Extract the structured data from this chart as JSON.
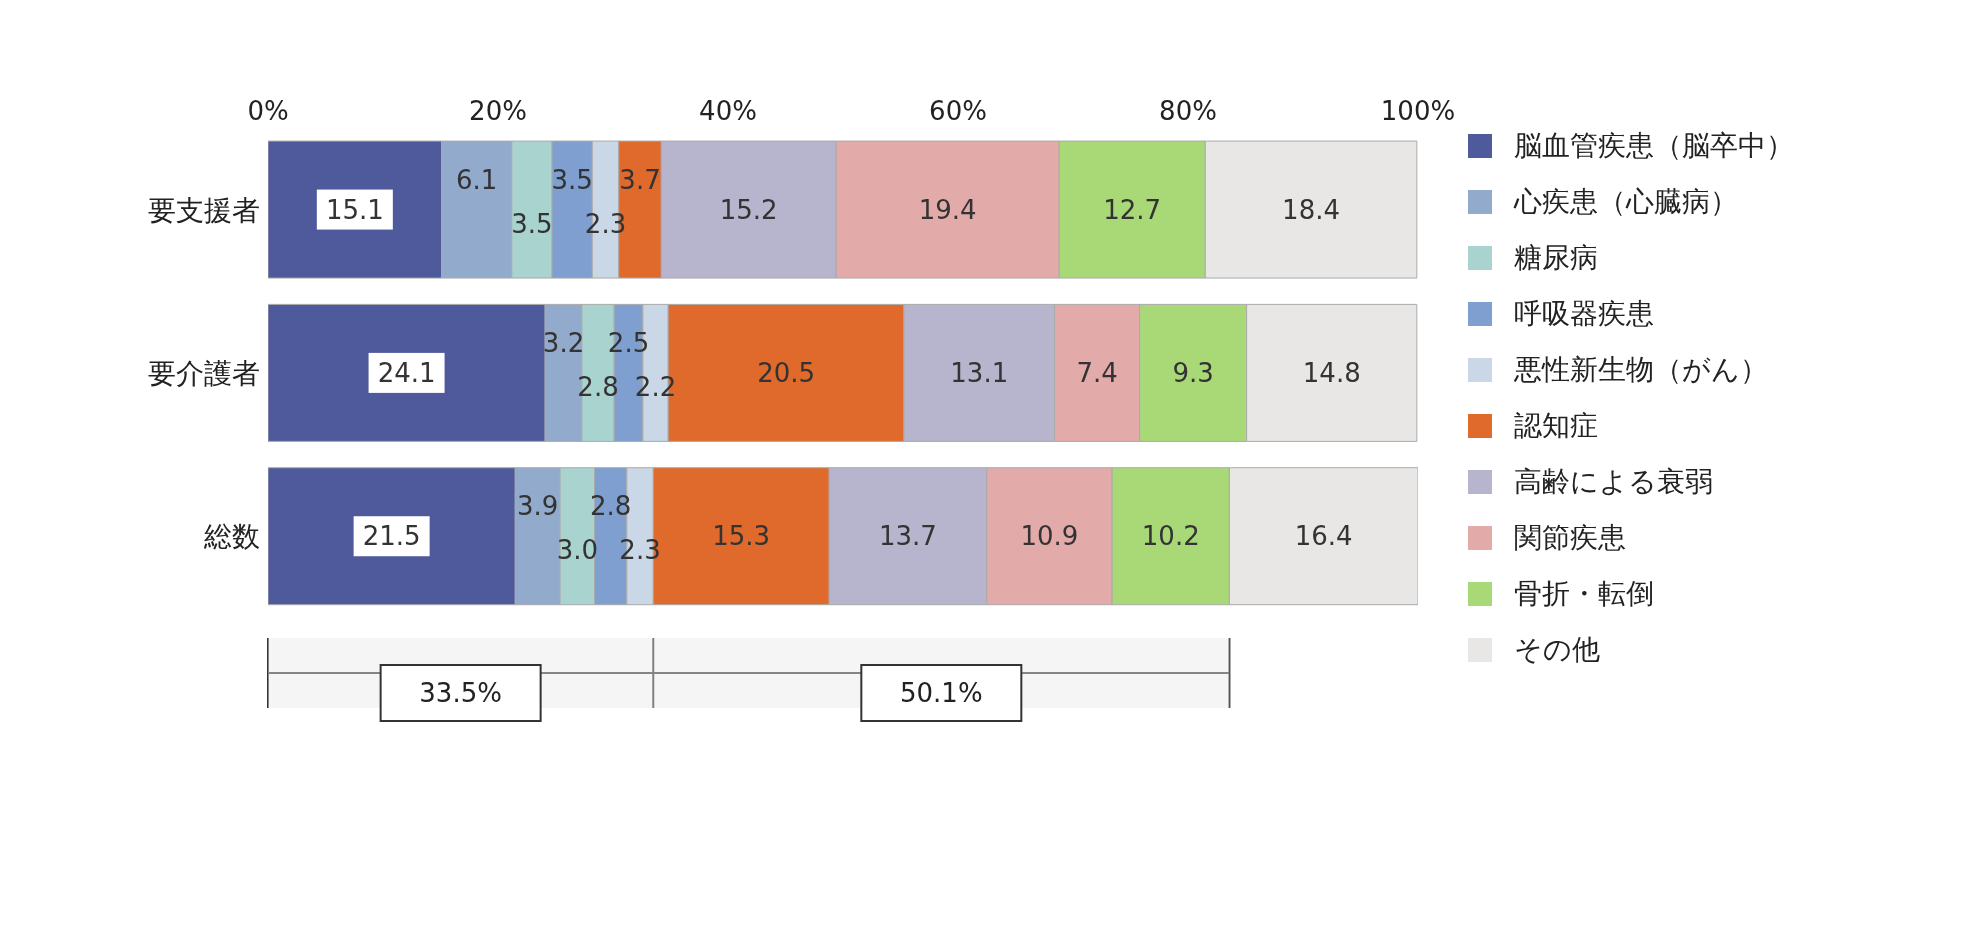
{
  "chart_data": {
    "type": "bar",
    "orientation": "horizontal",
    "stacked": true,
    "categories": [
      "要支援者",
      "要介護者",
      "総数"
    ],
    "series": [
      {
        "name": "脳血管疾患（脳卒中）",
        "color": "#4f5a9c",
        "values": [
          15.1,
          24.1,
          21.5
        ],
        "value_labels": [
          "15.1",
          "24.1",
          "21.5"
        ]
      },
      {
        "name": "心疾患（心臓病）",
        "color": "#92aacb",
        "values": [
          6.1,
          3.2,
          3.9
        ],
        "value_labels": [
          "6.1",
          "3.2",
          "3.9"
        ]
      },
      {
        "name": "糖尿病",
        "color": "#a9d3cf",
        "values": [
          3.5,
          2.8,
          3.0
        ],
        "value_labels": [
          "3.5",
          "2.8",
          "3.0"
        ]
      },
      {
        "name": "呼吸器疾患",
        "color": "#7e9fd0",
        "values": [
          3.5,
          2.5,
          2.8
        ],
        "value_labels": [
          "3.5",
          "2.5",
          "2.8"
        ]
      },
      {
        "name": "悪性新生物（がん）",
        "color": "#c9d7e6",
        "values": [
          2.3,
          2.2,
          2.3
        ],
        "value_labels": [
          "2.3",
          "2.2",
          "2.3"
        ]
      },
      {
        "name": "認知症",
        "color": "#e0692c",
        "values": [
          3.7,
          20.5,
          15.3
        ],
        "value_labels": [
          "3.7",
          "20.5",
          "15.3"
        ]
      },
      {
        "name": "高齢による衰弱",
        "color": "#b6b5cd",
        "values": [
          15.2,
          13.1,
          13.7
        ],
        "value_labels": [
          "15.2",
          "13.1",
          "13.7"
        ]
      },
      {
        "name": "関節疾患",
        "color": "#e3aaaa",
        "values": [
          19.4,
          7.4,
          10.9
        ],
        "value_labels": [
          "19.4",
          "7.4",
          "10.9"
        ]
      },
      {
        "name": "骨折・転倒",
        "color": "#a9d877",
        "values": [
          12.7,
          9.3,
          10.2
        ],
        "value_labels": [
          "12.7",
          "9.3",
          "10.2"
        ]
      },
      {
        "name": "その他",
        "color": "#e9e6e6",
        "values": [
          18.4,
          14.8,
          16.4
        ],
        "value_labels": [
          "18.4",
          "14.8",
          "16.4"
        ]
      }
    ],
    "xlim": [
      0,
      100
    ],
    "xticks": [
      {
        "value": 0,
        "label": "0%"
      },
      {
        "value": 20,
        "label": "20%"
      },
      {
        "value": 40,
        "label": "40%"
      },
      {
        "value": 60,
        "label": "60%"
      },
      {
        "value": 80,
        "label": "80%"
      },
      {
        "value": 100,
        "label": "100%"
      }
    ],
    "bands": [
      {
        "axis": "x",
        "from": 0,
        "to": 33.5,
        "label": "33.5%"
      },
      {
        "axis": "x",
        "from": 33.5,
        "to": 83.6,
        "label": "50.1%"
      }
    ],
    "legend": "right"
  }
}
